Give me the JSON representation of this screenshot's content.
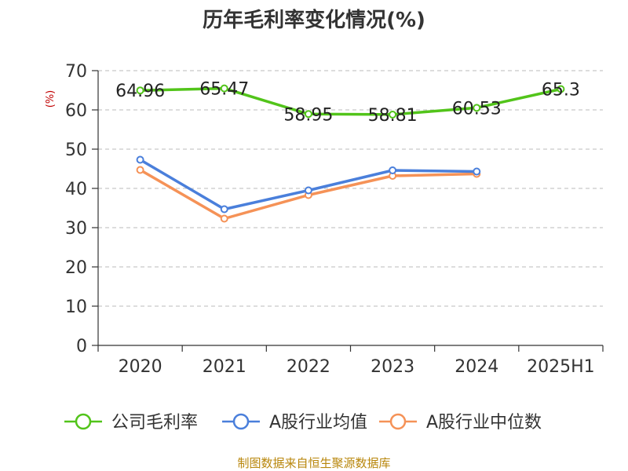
{
  "chart_data": {
    "type": "line",
    "title": "历年毛利率变化情况(%)",
    "ylabel": "(%)",
    "xlabel": "",
    "categories": [
      "2020",
      "2021",
      "2022",
      "2023",
      "2024",
      "2025H1"
    ],
    "ylim": [
      0,
      70
    ],
    "yticks": [
      0,
      10,
      20,
      30,
      40,
      50,
      60,
      70
    ],
    "grid": true,
    "legend_position": "bottom",
    "series": [
      {
        "name": "公司毛利率",
        "color": "#52c41a",
        "values": [
          64.96,
          65.47,
          58.95,
          58.81,
          60.53,
          65.3
        ],
        "labels": [
          "64.96",
          "65.47",
          "58.95",
          "58.81",
          "60.53",
          "65.3"
        ]
      },
      {
        "name": "A股行业均值",
        "color": "#4a7fdb",
        "values": [
          47.3,
          34.7,
          39.5,
          44.6,
          44.3,
          null
        ]
      },
      {
        "name": "A股行业中位数",
        "color": "#f59257",
        "values": [
          44.7,
          32.3,
          38.3,
          43.2,
          43.7,
          null
        ]
      }
    ]
  },
  "source": "制图数据来自恒生聚源数据库"
}
